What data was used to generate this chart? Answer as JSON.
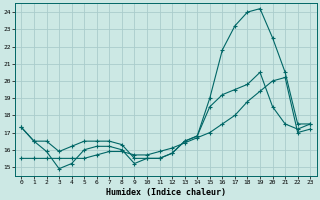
{
  "title": "",
  "xlabel": "Humidex (Indice chaleur)",
  "bg_color": "#cce8e4",
  "grid_color": "#aacccc",
  "line_color": "#006666",
  "xlim": [
    -0.5,
    23.5
  ],
  "ylim": [
    14.5,
    24.5
  ],
  "xticks": [
    0,
    1,
    2,
    3,
    4,
    5,
    6,
    7,
    8,
    9,
    10,
    11,
    12,
    13,
    14,
    15,
    16,
    17,
    18,
    19,
    20,
    21,
    22,
    23
  ],
  "yticks": [
    15,
    16,
    17,
    18,
    19,
    20,
    21,
    22,
    23,
    24
  ],
  "line1_x": [
    0,
    1,
    2,
    3,
    4,
    5,
    6,
    7,
    8,
    9,
    10,
    11,
    12,
    13,
    14,
    15,
    16,
    17,
    18,
    19,
    20,
    21,
    22,
    23
  ],
  "line1_y": [
    17.3,
    16.5,
    16.5,
    15.9,
    16.2,
    16.5,
    16.5,
    16.5,
    16.3,
    15.5,
    15.5,
    15.5,
    15.8,
    16.5,
    16.8,
    18.5,
    19.2,
    19.5,
    19.8,
    20.5,
    18.5,
    17.5,
    17.2,
    17.5
  ],
  "line2_x": [
    0,
    1,
    2,
    3,
    4,
    5,
    6,
    7,
    8,
    9,
    10,
    11,
    12,
    13,
    14,
    15,
    16,
    17,
    18,
    19,
    20,
    21,
    22,
    23
  ],
  "line2_y": [
    17.3,
    16.5,
    15.9,
    14.9,
    15.2,
    16.0,
    16.2,
    16.2,
    16.0,
    15.2,
    15.5,
    15.5,
    15.8,
    16.5,
    16.8,
    19.0,
    21.8,
    23.2,
    24.0,
    24.2,
    22.5,
    20.5,
    17.5,
    17.5
  ],
  "line3_x": [
    0,
    1,
    2,
    3,
    4,
    5,
    6,
    7,
    8,
    9,
    10,
    11,
    12,
    13,
    14,
    15,
    16,
    17,
    18,
    19,
    20,
    21,
    22,
    23
  ],
  "line3_y": [
    15.5,
    15.5,
    15.5,
    15.5,
    15.5,
    15.5,
    15.7,
    15.9,
    15.9,
    15.7,
    15.7,
    15.9,
    16.1,
    16.4,
    16.7,
    17.0,
    17.5,
    18.0,
    18.8,
    19.4,
    20.0,
    20.2,
    17.0,
    17.2
  ]
}
